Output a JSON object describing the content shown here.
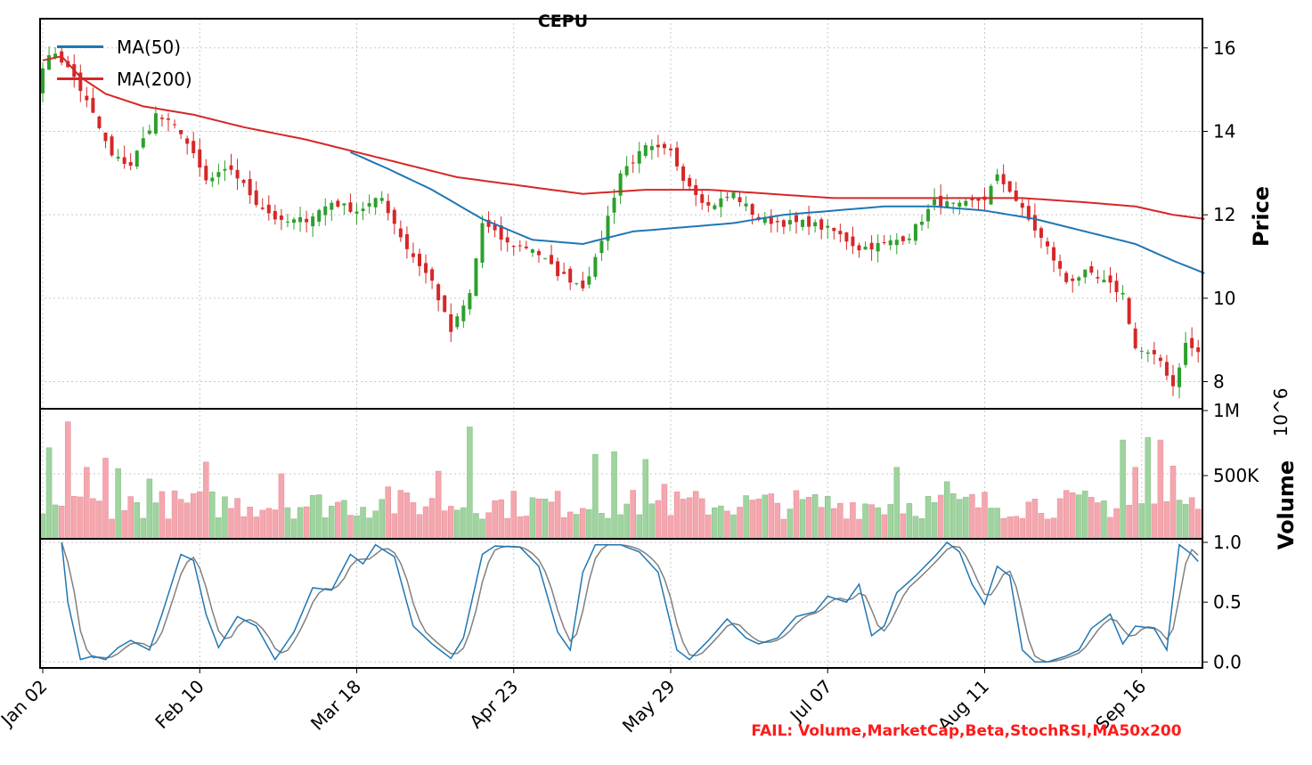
{
  "title": "CEPU",
  "footer_text": "FAIL: Volume,MarketCap,Beta,StochRSI,MA50x200",
  "colors": {
    "up": "#2ca02c",
    "down": "#d62728",
    "ma50": "#1f77b4",
    "ma200": "#d62728",
    "stoch_k": "#1f77b4",
    "stoch_d": "#808080",
    "footer": "#ff1a1a",
    "grid": "#c8c8c8"
  },
  "chart_data": {
    "type": "candlestick",
    "title": "CEPU",
    "legend": {
      "placement": "top-left",
      "entries": [
        {
          "label": "MA(50)",
          "color": "#1f77b4"
        },
        {
          "label": "MA(200)",
          "color": "#d62728"
        }
      ]
    },
    "x_tick_labels": [
      "Jan 02",
      "Feb 10",
      "Mar 18",
      "Apr 23",
      "May 29",
      "Jul 07",
      "Aug 11",
      "Sep 16"
    ],
    "x_tick_index": [
      0,
      25,
      50,
      75,
      100,
      125,
      150,
      175
    ],
    "session_count": 185,
    "price_panel": {
      "ylabel": "Price",
      "ylim": [
        7.35,
        16.7
      ],
      "yticks": [
        8,
        10,
        12,
        14,
        16
      ],
      "grid": true,
      "close_keypoints": [
        [
          0,
          15.6
        ],
        [
          2,
          15.9
        ],
        [
          5,
          15.3
        ],
        [
          8,
          14.4
        ],
        [
          11,
          13.4
        ],
        [
          14,
          13.2
        ],
        [
          18,
          14.4
        ],
        [
          22,
          14.0
        ],
        [
          26,
          12.8
        ],
        [
          30,
          13.1
        ],
        [
          34,
          12.3
        ],
        [
          38,
          11.8
        ],
        [
          42,
          11.9
        ],
        [
          46,
          12.3
        ],
        [
          50,
          12.1
        ],
        [
          54,
          12.4
        ],
        [
          58,
          11.2
        ],
        [
          62,
          10.4
        ],
        [
          65,
          9.2
        ],
        [
          68,
          10.1
        ],
        [
          70,
          11.8
        ],
        [
          74,
          11.3
        ],
        [
          78,
          11.2
        ],
        [
          82,
          10.6
        ],
        [
          86,
          10.3
        ],
        [
          88,
          10.9
        ],
        [
          92,
          13.0
        ],
        [
          96,
          13.6
        ],
        [
          100,
          13.5
        ],
        [
          102,
          12.9
        ],
        [
          106,
          12.2
        ],
        [
          110,
          12.5
        ],
        [
          114,
          11.9
        ],
        [
          118,
          11.8
        ],
        [
          122,
          11.8
        ],
        [
          126,
          11.6
        ],
        [
          130,
          11.2
        ],
        [
          134,
          11.3
        ],
        [
          138,
          11.5
        ],
        [
          142,
          12.3
        ],
        [
          146,
          12.2
        ],
        [
          150,
          12.4
        ],
        [
          152,
          12.9
        ],
        [
          154,
          12.6
        ],
        [
          156,
          12.1
        ],
        [
          160,
          11.2
        ],
        [
          163,
          10.4
        ],
        [
          166,
          10.6
        ],
        [
          170,
          10.3
        ],
        [
          172,
          10.1
        ],
        [
          174,
          8.8
        ],
        [
          178,
          8.5
        ],
        [
          180,
          7.9
        ],
        [
          182,
          8.9
        ],
        [
          185,
          8.6
        ]
      ],
      "ma50_keypoints": [
        [
          49,
          13.5
        ],
        [
          55,
          13.1
        ],
        [
          62,
          12.6
        ],
        [
          70,
          11.9
        ],
        [
          78,
          11.4
        ],
        [
          86,
          11.3
        ],
        [
          94,
          11.6
        ],
        [
          102,
          11.7
        ],
        [
          110,
          11.8
        ],
        [
          118,
          12.0
        ],
        [
          126,
          12.1
        ],
        [
          134,
          12.2
        ],
        [
          142,
          12.2
        ],
        [
          150,
          12.1
        ],
        [
          158,
          11.9
        ],
        [
          166,
          11.6
        ],
        [
          174,
          11.3
        ],
        [
          180,
          10.9
        ],
        [
          185,
          10.6
        ]
      ],
      "ma200_keypoints": [
        [
          0,
          15.7
        ],
        [
          3,
          15.8
        ],
        [
          6,
          15.3
        ],
        [
          10,
          14.9
        ],
        [
          16,
          14.6
        ],
        [
          24,
          14.4
        ],
        [
          32,
          14.1
        ],
        [
          42,
          13.8
        ],
        [
          50,
          13.5
        ],
        [
          58,
          13.2
        ],
        [
          66,
          12.9
        ],
        [
          76,
          12.7
        ],
        [
          86,
          12.5
        ],
        [
          96,
          12.6
        ],
        [
          106,
          12.6
        ],
        [
          116,
          12.5
        ],
        [
          126,
          12.4
        ],
        [
          136,
          12.4
        ],
        [
          146,
          12.4
        ],
        [
          156,
          12.4
        ],
        [
          166,
          12.3
        ],
        [
          174,
          12.2
        ],
        [
          180,
          12.0
        ],
        [
          185,
          11.9
        ]
      ],
      "gaps_after_index": [
        145,
        172
      ]
    },
    "volume_panel": {
      "ylabel": "Volume",
      "scale_label": "10^6",
      "ylim": [
        0,
        1000000
      ],
      "tick_labels": [
        "1M",
        "500K"
      ],
      "tick_values": [
        1000000,
        500000
      ],
      "spikes": [
        [
          1,
          700000
        ],
        [
          4,
          900000
        ],
        [
          7,
          550000
        ],
        [
          10,
          620000
        ],
        [
          12,
          540000
        ],
        [
          17,
          460000
        ],
        [
          26,
          590000
        ],
        [
          38,
          500000
        ],
        [
          55,
          400000
        ],
        [
          63,
          520000
        ],
        [
          68,
          860000
        ],
        [
          88,
          650000
        ],
        [
          91,
          670000
        ],
        [
          96,
          610000
        ],
        [
          99,
          420000
        ],
        [
          136,
          550000
        ],
        [
          144,
          440000
        ],
        [
          172,
          760000
        ],
        [
          174,
          550000
        ],
        [
          176,
          780000
        ],
        [
          178,
          760000
        ],
        [
          180,
          560000
        ]
      ]
    },
    "stoch_panel": {
      "ylim": [
        -0.05,
        1.03
      ],
      "yticks": [
        0.0,
        0.5,
        1.0
      ],
      "tick_labels": [
        "0.0",
        "0.5",
        "1.0"
      ],
      "k_keypoints": [
        [
          3,
          1.0
        ],
        [
          4,
          0.5
        ],
        [
          6,
          0.02
        ],
        [
          8,
          0.05
        ],
        [
          10,
          0.02
        ],
        [
          12,
          0.12
        ],
        [
          14,
          0.18
        ],
        [
          17,
          0.1
        ],
        [
          19,
          0.4
        ],
        [
          22,
          0.9
        ],
        [
          24,
          0.85
        ],
        [
          26,
          0.4
        ],
        [
          28,
          0.12
        ],
        [
          31,
          0.38
        ],
        [
          34,
          0.3
        ],
        [
          37,
          0.02
        ],
        [
          40,
          0.25
        ],
        [
          43,
          0.62
        ],
        [
          46,
          0.6
        ],
        [
          49,
          0.9
        ],
        [
          51,
          0.82
        ],
        [
          53,
          0.98
        ],
        [
          56,
          0.88
        ],
        [
          59,
          0.3
        ],
        [
          62,
          0.15
        ],
        [
          65,
          0.03
        ],
        [
          67,
          0.2
        ],
        [
          70,
          0.9
        ],
        [
          72,
          0.97
        ],
        [
          76,
          0.96
        ],
        [
          79,
          0.8
        ],
        [
          82,
          0.25
        ],
        [
          84,
          0.1
        ],
        [
          86,
          0.75
        ],
        [
          88,
          0.98
        ],
        [
          92,
          0.98
        ],
        [
          95,
          0.92
        ],
        [
          98,
          0.75
        ],
        [
          101,
          0.1
        ],
        [
          103,
          0.02
        ],
        [
          106,
          0.18
        ],
        [
          109,
          0.36
        ],
        [
          112,
          0.2
        ],
        [
          114,
          0.15
        ],
        [
          117,
          0.2
        ],
        [
          120,
          0.38
        ],
        [
          123,
          0.42
        ],
        [
          125,
          0.55
        ],
        [
          128,
          0.5
        ],
        [
          130,
          0.65
        ],
        [
          132,
          0.22
        ],
        [
          134,
          0.3
        ],
        [
          136,
          0.58
        ],
        [
          139,
          0.72
        ],
        [
          142,
          0.88
        ],
        [
          144,
          1.0
        ],
        [
          146,
          0.92
        ],
        [
          148,
          0.65
        ],
        [
          150,
          0.48
        ],
        [
          152,
          0.8
        ],
        [
          154,
          0.72
        ],
        [
          156,
          0.1
        ],
        [
          158,
          0.0
        ],
        [
          160,
          0.0
        ],
        [
          163,
          0.05
        ],
        [
          165,
          0.1
        ],
        [
          167,
          0.28
        ],
        [
          170,
          0.4
        ],
        [
          172,
          0.15
        ],
        [
          174,
          0.3
        ],
        [
          177,
          0.28
        ],
        [
          179,
          0.1
        ],
        [
          181,
          0.98
        ],
        [
          183,
          0.9
        ],
        [
          185,
          0.78
        ]
      ]
    }
  }
}
